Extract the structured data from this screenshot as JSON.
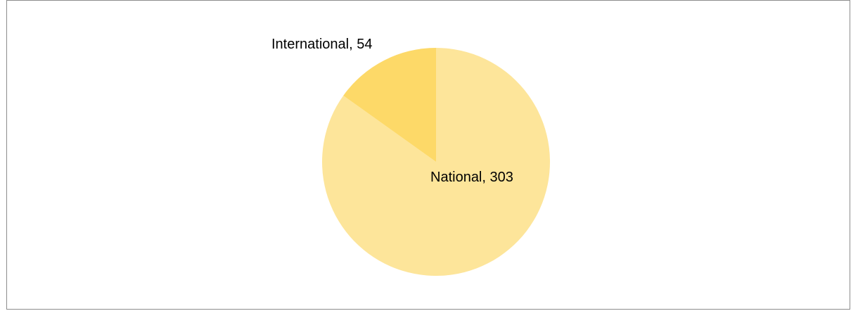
{
  "chart_data": {
    "type": "pie",
    "title": "",
    "categories": [
      "National",
      "International"
    ],
    "values": [
      303,
      54
    ],
    "colors": [
      "#fde59a",
      "#fdd968"
    ],
    "data_labels": [
      "National, 303",
      "International, 54"
    ],
    "start_angle_deg": 0,
    "direction": "clockwise",
    "legend": "none"
  }
}
